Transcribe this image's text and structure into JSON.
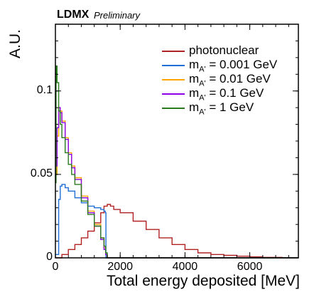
{
  "header": {
    "experiment": "LDMX",
    "status": "Preliminary"
  },
  "chart_data": {
    "type": "line",
    "title": "",
    "xlabel": "Total energy deposited [MeV]",
    "ylabel": "A.U.",
    "xlim": [
      0,
      7500
    ],
    "ylim": [
      0,
      0.14
    ],
    "xticks": [
      "0",
      "2000",
      "4000",
      "6000"
    ],
    "yticks": [
      "0",
      "0.05",
      "0.1"
    ],
    "legend_position": "top-right",
    "series": [
      {
        "name": "photonuclear",
        "legend_main": "photonuclear",
        "legend_sub": "",
        "legend_rest": "",
        "color": "#b22222",
        "x": [
          0,
          200,
          400,
          600,
          800,
          1000,
          1200,
          1400,
          1500,
          1600,
          1700,
          1800,
          2000,
          2400,
          2800,
          3200,
          3600,
          4000,
          4400,
          4800,
          5200,
          5600,
          6000,
          6400,
          7000,
          7400
        ],
        "y": [
          0,
          0.002,
          0.005,
          0.008,
          0.012,
          0.016,
          0.021,
          0.027,
          0.031,
          0.032,
          0.031,
          0.029,
          0.027,
          0.022,
          0.017,
          0.012,
          0.008,
          0.005,
          0.003,
          0.002,
          0.0015,
          0.001,
          0.0006,
          0.0003,
          0.0001,
          0.0001
        ]
      },
      {
        "name": "m_{A'} = 0.001 GeV",
        "legend_main": "m",
        "legend_sub": "A'",
        "legend_rest": " = 0.001 GeV",
        "color": "#1f6fd6",
        "x": [
          0,
          100,
          150,
          200,
          300,
          400,
          600,
          800,
          1000,
          1200,
          1400,
          1500,
          1540,
          1560,
          7500
        ],
        "y": [
          0.002,
          0.035,
          0.043,
          0.044,
          0.042,
          0.04,
          0.036,
          0.033,
          0.031,
          0.03,
          0.029,
          0.028,
          0.027,
          0,
          0
        ]
      },
      {
        "name": "m_{A'} = 0.01 GeV",
        "legend_main": "m",
        "legend_sub": "A'",
        "legend_rest": " = 0.01 GeV",
        "color": "#ffa500",
        "x": [
          0,
          50,
          100,
          150,
          200,
          300,
          400,
          500,
          600,
          800,
          1000,
          1200,
          1400,
          1500,
          1550,
          1600,
          7500
        ],
        "y": [
          0.05,
          0.073,
          0.09,
          0.088,
          0.082,
          0.072,
          0.063,
          0.055,
          0.048,
          0.037,
          0.028,
          0.02,
          0.012,
          0.006,
          0.002,
          0,
          0
        ]
      },
      {
        "name": "m_{A'} = 0.1 GeV",
        "legend_main": "m",
        "legend_sub": "A'",
        "legend_rest": " = 0.1 GeV",
        "color": "#8b00e6",
        "x": [
          0,
          50,
          100,
          150,
          200,
          300,
          400,
          500,
          600,
          800,
          1000,
          1200,
          1400,
          1500,
          1550,
          1600,
          7500
        ],
        "y": [
          0.055,
          0.078,
          0.09,
          0.087,
          0.081,
          0.071,
          0.062,
          0.054,
          0.047,
          0.036,
          0.027,
          0.019,
          0.011,
          0.005,
          0.002,
          0,
          0
        ]
      },
      {
        "name": "m_{A'} = 1 GeV",
        "legend_main": "m",
        "legend_sub": "A'",
        "legend_rest": " = 1 GeV",
        "color": "#2a7a1e",
        "x": [
          0,
          20,
          50,
          100,
          150,
          200,
          300,
          400,
          500,
          600,
          800,
          1000,
          1200,
          1400,
          1500,
          1550,
          1600,
          7500
        ],
        "y": [
          0.045,
          0.115,
          0.105,
          0.088,
          0.08,
          0.072,
          0.063,
          0.056,
          0.05,
          0.044,
          0.034,
          0.026,
          0.019,
          0.012,
          0.007,
          0.003,
          0,
          0
        ]
      }
    ]
  }
}
